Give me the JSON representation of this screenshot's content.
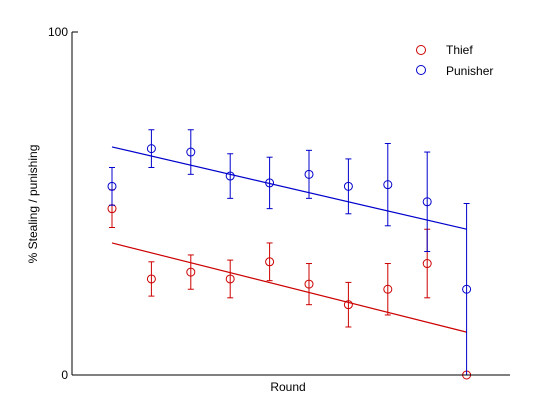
{
  "chart_data": {
    "type": "scatter",
    "title": "",
    "xlabel": "Round",
    "ylabel": "% Stealing / punishing",
    "ylim": [
      0,
      100
    ],
    "yticks": [
      "0",
      "100"
    ],
    "x_ticks_shown": false,
    "grid": false,
    "legend_position": "top-right",
    "x": [
      1,
      2,
      3,
      4,
      5,
      6,
      7,
      8,
      9,
      10
    ],
    "xlim": [
      0.5,
      10.5
    ],
    "series": [
      {
        "name": "Thief",
        "color": "#cc0000",
        "marker": "open-circle",
        "values": [
          48.5,
          28,
          30,
          28,
          33,
          26.5,
          20.5,
          25,
          32.5,
          0
        ],
        "errors": [
          5.5,
          5,
          5,
          5.5,
          5.5,
          6,
          6.5,
          7.5,
          10,
          null
        ],
        "trend": [
          38.5,
          12.5
        ]
      },
      {
        "name": "Punisher",
        "color": "#0000cc",
        "marker": "open-circle",
        "values": [
          55,
          66,
          65,
          58,
          56,
          58.5,
          55,
          55.5,
          50.5,
          25
        ],
        "errors": [
          5.5,
          5.5,
          6.5,
          6.5,
          7.5,
          7,
          8,
          12,
          14.5,
          25
        ],
        "trend": [
          66.5,
          42.5
        ]
      }
    ]
  }
}
